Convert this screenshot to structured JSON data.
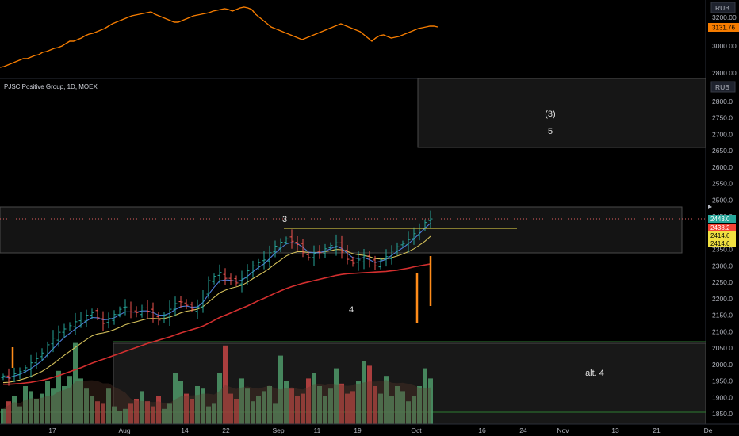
{
  "top_pane": {
    "currency": "RUB",
    "price_labels": [
      "3200.00",
      "3000.00",
      "2800.00"
    ],
    "last_value_tag": "3131.76",
    "tag_color": "#f57c00",
    "line_color": "#f57c00"
  },
  "main_pane": {
    "title": "PJSC Positive Group, 1D, MOEX",
    "currency": "RUB",
    "price_labels": [
      "2800.0",
      "2750.0",
      "2700.0",
      "2650.0",
      "2600.0",
      "2550.0",
      "2500.0",
      "2450.0",
      "2400.0",
      "2350.0",
      "2300.0",
      "2250.0",
      "2200.0",
      "2150.0",
      "2100.0",
      "2050.0",
      "2000.0",
      "1950.0",
      "1900.0",
      "1850.0"
    ],
    "price_tags": [
      {
        "text": "2443.0",
        "bg": "#26a69a",
        "fg": "#ffffff"
      },
      {
        "text": "2438.2",
        "bg": "#f44336",
        "fg": "#ffffff"
      },
      {
        "text": "2414.6",
        "bg": "#f0e040",
        "fg": "#000000"
      },
      {
        "text": "2414.6",
        "bg": "#f0e040",
        "fg": "#000000"
      }
    ],
    "wave_labels": {
      "upper_box_degree": "(3)",
      "upper_box_wave": "5",
      "wave_3": "3",
      "wave_4": "4",
      "alt_4": "alt. 4"
    },
    "alt_label_color": "#ffb74d"
  },
  "time_axis": [
    "17",
    "Aug",
    "14",
    "22",
    "Sep",
    "11",
    "19",
    "Oct",
    "16",
    "24",
    "Nov",
    "13",
    "21",
    "De"
  ],
  "chart_data": {
    "type": "ohlc",
    "x_axis_labels": [
      "17",
      "Aug",
      "14",
      "22",
      "Sep",
      "11",
      "19",
      "Oct",
      "16",
      "24",
      "Nov",
      "13",
      "21",
      "De"
    ],
    "y_axis_labels": [
      "2800.0",
      "2750.0",
      "2700.0",
      "2650.0",
      "2600.0",
      "2550.0",
      "2500.0",
      "2450.0",
      "2400.0",
      "2350.0",
      "2300.0",
      "2250.0",
      "2200.0",
      "2150.0",
      "2100.0",
      "2050.0",
      "2000.0",
      "1950.0",
      "1900.0",
      "1850.0"
    ],
    "ylim": [
      1835,
      2825
    ],
    "bars_count": 78,
    "close": [
      1965,
      1958,
      1972,
      1978,
      1990,
      2005,
      2018,
      2035,
      2060,
      2080,
      2098,
      2108,
      2118,
      2130,
      2138,
      2150,
      2158,
      2142,
      2125,
      2140,
      2152,
      2168,
      2175,
      2160,
      2158,
      2172,
      2162,
      2148,
      2135,
      2150,
      2168,
      2185,
      2190,
      2180,
      2168,
      2175,
      2208,
      2255,
      2268,
      2280,
      2262,
      2255,
      2248,
      2260,
      2285,
      2300,
      2310,
      2318,
      2340,
      2360,
      2372,
      2382,
      2375,
      2365,
      2340,
      2325,
      2338,
      2340,
      2352,
      2362,
      2370,
      2342,
      2320,
      2308,
      2318,
      2330,
      2312,
      2300,
      2318,
      2328,
      2345,
      2358,
      2368,
      2380,
      2398,
      2415,
      2432,
      2443
    ],
    "ema_fast": [
      1962,
      1960,
      1965,
      1970,
      1978,
      1988,
      1999,
      2012,
      2030,
      2048,
      2066,
      2082,
      2095,
      2108,
      2120,
      2132,
      2143,
      2142,
      2136,
      2137,
      2142,
      2151,
      2160,
      2160,
      2159,
      2163,
      2163,
      2158,
      2150,
      2150,
      2156,
      2167,
      2176,
      2178,
      2174,
      2175,
      2189,
      2213,
      2235,
      2254,
      2257,
      2256,
      2253,
      2256,
      2268,
      2282,
      2295,
      2306,
      2322,
      2339,
      2354,
      2367,
      2371,
      2368,
      2356,
      2342,
      2340,
      2340,
      2345,
      2352,
      2360,
      2353,
      2338,
      2325,
      2322,
      2325,
      2319,
      2310,
      2314,
      2320,
      2332,
      2344,
      2355,
      2367,
      2382,
      2398,
      2415,
      2430
    ],
    "ema_mid": [
      1945,
      1946,
      1949,
      1953,
      1958,
      1964,
      1971,
      1979,
      1990,
      2002,
      2015,
      2028,
      2040,
      2052,
      2064,
      2076,
      2087,
      2093,
      2096,
      2100,
      2106,
      2113,
      2121,
      2126,
      2130,
      2135,
      2139,
      2140,
      2139,
      2140,
      2144,
      2150,
      2157,
      2162,
      2165,
      2168,
      2176,
      2190,
      2204,
      2218,
      2226,
      2232,
      2236,
      2241,
      2250,
      2261,
      2271,
      2281,
      2293,
      2306,
      2318,
      2330,
      2338,
      2343,
      2343,
      2341,
      2341,
      2341,
      2343,
      2346,
      2350,
      2349,
      2344,
      2337,
      2334,
      2332,
      2328,
      2322,
      2321,
      2321,
      2325,
      2330,
      2336,
      2343,
      2352,
      2363,
      2375,
      2390
    ],
    "sma_slow": [
      1940,
      1940,
      1941,
      1942,
      1944,
      1946,
      1949,
      1952,
      1956,
      1961,
      1966,
      1972,
      1978,
      1984,
      1990,
      1997,
      2004,
      2010,
      2016,
      2022,
      2028,
      2034,
      2040,
      2046,
      2052,
      2058,
      2064,
      2069,
      2074,
      2079,
      2084,
      2090,
      2096,
      2101,
      2106,
      2111,
      2117,
      2125,
      2134,
      2143,
      2150,
      2157,
      2164,
      2171,
      2178,
      2186,
      2194,
      2201,
      2209,
      2217,
      2224,
      2231,
      2237,
      2242,
      2247,
      2251,
      2255,
      2259,
      2263,
      2267,
      2271,
      2274,
      2276,
      2277,
      2278,
      2279,
      2280,
      2281,
      2282,
      2283,
      2285,
      2287,
      2290,
      2293,
      2297,
      2300,
      2303,
      2306
    ],
    "volume": [
      12,
      18,
      22,
      14,
      30,
      26,
      20,
      24,
      34,
      28,
      42,
      30,
      38,
      64,
      36,
      28,
      22,
      18,
      16,
      28,
      14,
      10,
      12,
      16,
      20,
      26,
      18,
      14,
      22,
      12,
      16,
      40,
      34,
      24,
      20,
      30,
      28,
      14,
      16,
      40,
      62,
      24,
      20,
      36,
      28,
      18,
      22,
      26,
      30,
      16,
      54,
      34,
      28,
      22,
      24,
      36,
      40,
      30,
      22,
      28,
      44,
      32,
      24,
      26,
      34,
      50,
      46,
      30,
      24,
      38,
      22,
      30,
      26,
      18,
      22,
      30,
      44,
      36
    ],
    "resistance_level": 2430,
    "zones": [
      {
        "label": "(3) 5",
        "low": 2620,
        "high": 2825
      },
      {
        "label": "3",
        "low": 2342,
        "high": 2480
      },
      {
        "label": "alt. 4",
        "low": 1835,
        "high": 2060
      }
    ]
  }
}
